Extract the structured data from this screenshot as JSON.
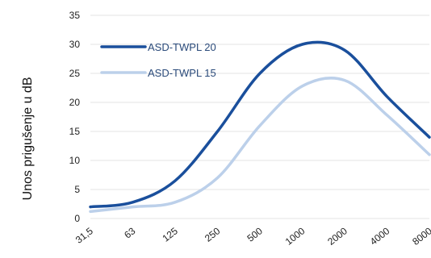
{
  "chart_data": {
    "type": "line",
    "title": "",
    "xlabel": "",
    "ylabel": "Unos prigušenje u dB",
    "categories": [
      "31,5",
      "63",
      "125",
      "250",
      "500",
      "1000",
      "2000",
      "4000",
      "8000"
    ],
    "ylim": [
      0,
      35
    ],
    "yticks": [
      "0",
      "5",
      "10",
      "15",
      "20",
      "25",
      "30",
      "35"
    ],
    "grid": true,
    "legend": "top-left",
    "series": [
      {
        "name": "ASD-TWPL 20",
        "color": "#1a4f9c",
        "values": [
          2,
          2.8,
          6.5,
          15,
          25,
          30,
          29,
          21,
          14
        ]
      },
      {
        "name": "ASD-TWPL 15",
        "color": "#bcd0ea",
        "values": [
          1.2,
          2.0,
          2.8,
          7,
          16,
          22.8,
          23.8,
          17.8,
          11
        ]
      }
    ]
  }
}
